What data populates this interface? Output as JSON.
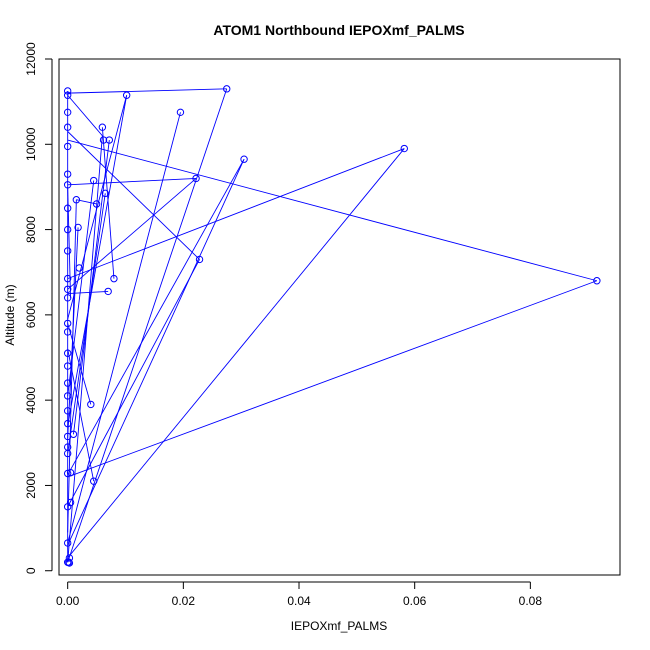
{
  "chart_data": {
    "type": "line",
    "title": "ATOM1 Northbound IEPOXmf_PALMS",
    "xlabel": "IEPOXmf_PALMS",
    "ylabel": "Altitude (m)",
    "xlim": [
      -0.0015,
      0.0955
    ],
    "ylim": [
      -100,
      12000
    ],
    "xticks": [
      0.0,
      0.02,
      0.04,
      0.06,
      0.08
    ],
    "xtick_labels": [
      "0.00",
      "0.02",
      "0.04",
      "0.06",
      "0.08"
    ],
    "yticks": [
      0,
      2000,
      4000,
      6000,
      8000,
      10000,
      12000
    ],
    "ytick_labels": [
      "0",
      "2000",
      "4000",
      "6000",
      "8000",
      "10000",
      "12000"
    ],
    "grid": false,
    "legend": "none",
    "series": [
      {
        "color": "#0000ff",
        "marker": "open-circle",
        "points": [
          [
            0.0,
            200
          ],
          [
            0.0,
            650
          ],
          [
            0.0003,
            180
          ],
          [
            0.0002,
            200
          ],
          [
            0.0,
            1500
          ],
          [
            0.0,
            2280
          ],
          [
            0.0005,
            2300
          ],
          [
            0.0,
            2750
          ],
          [
            0.0,
            2900
          ],
          [
            0.0,
            3150
          ],
          [
            0.0,
            3450
          ],
          [
            0.0,
            3750
          ],
          [
            0.0,
            4100
          ],
          [
            0.0,
            4400
          ],
          [
            0.0,
            4800
          ],
          [
            0.0,
            5100
          ],
          [
            0.0,
            5600
          ],
          [
            0.0,
            5800
          ],
          [
            0.0,
            6400
          ],
          [
            0.0,
            6600
          ],
          [
            0.0,
            6850
          ],
          [
            0.0,
            7500
          ],
          [
            0.0,
            8000
          ],
          [
            0.0,
            8500
          ],
          [
            0.0,
            9050
          ],
          [
            0.0,
            9300
          ],
          [
            0.0,
            9950
          ],
          [
            0.0,
            10400
          ],
          [
            0.0,
            10750
          ],
          [
            0.0,
            11150
          ],
          [
            0.0,
            11250
          ],
          [
            0.0003,
            300
          ],
          [
            0.0005,
            1600
          ],
          [
            0.001,
            3200
          ],
          [
            0.0015,
            8700
          ],
          [
            0.0018,
            8050
          ],
          [
            0.002,
            7100
          ],
          [
            0.004,
            3900
          ],
          [
            0.0045,
            2100
          ],
          [
            0.0045,
            9150
          ],
          [
            0.005,
            8600
          ],
          [
            0.006,
            10400
          ],
          [
            0.0062,
            10100
          ],
          [
            0.0065,
            8850
          ],
          [
            0.007,
            6550
          ],
          [
            0.0072,
            10100
          ],
          [
            0.008,
            6850
          ],
          [
            0.0102,
            11150
          ],
          [
            0.0195,
            10750
          ],
          [
            0.0222,
            9200
          ],
          [
            0.0228,
            7300
          ],
          [
            0.0275,
            11300
          ],
          [
            0.0305,
            9650
          ],
          [
            0.0582,
            9900
          ],
          [
            0.0915,
            6800
          ]
        ]
      }
    ],
    "segments": [
      [
        [
          0.0,
          11200
        ],
        [
          0.0275,
          11300
        ]
      ],
      [
        [
          0.0,
          11150
        ],
        [
          0.006,
          10200
        ]
      ],
      [
        [
          0.0,
          9050
        ],
        [
          0.0222,
          9200
        ]
      ],
      [
        [
          0.0,
          6850
        ],
        [
          0.0582,
          9900
        ]
      ],
      [
        [
          0.0,
          10100
        ],
        [
          0.0915,
          6800
        ]
      ],
      [
        [
          0.0915,
          6800
        ],
        [
          0.0,
          2200
        ]
      ],
      [
        [
          0.0582,
          9900
        ],
        [
          0.0,
          300
        ]
      ],
      [
        [
          0.0305,
          9650
        ],
        [
          0.0,
          600
        ]
      ],
      [
        [
          0.0305,
          9650
        ],
        [
          0.0,
          2250
        ]
      ],
      [
        [
          0.0195,
          10750
        ],
        [
          0.0,
          650
        ]
      ],
      [
        [
          0.0228,
          7300
        ],
        [
          0.0,
          10300
        ]
      ],
      [
        [
          0.0228,
          7300
        ],
        [
          0.0,
          1500
        ]
      ],
      [
        [
          0.0222,
          9200
        ],
        [
          0.0,
          6600
        ]
      ],
      [
        [
          0.0275,
          11300
        ],
        [
          0.0,
          200
        ]
      ],
      [
        [
          0.0102,
          11150
        ],
        [
          0.0,
          3400
        ]
      ],
      [
        [
          0.0102,
          11150
        ],
        [
          0.0,
          5900
        ]
      ],
      [
        [
          0.006,
          10200
        ],
        [
          0.0,
          200
        ]
      ],
      [
        [
          0.0072,
          10100
        ],
        [
          0.001,
          3200
        ]
      ],
      [
        [
          0.008,
          6850
        ],
        [
          0.006,
          10400
        ]
      ],
      [
        [
          0.007,
          6550
        ],
        [
          0.0,
          6500
        ]
      ],
      [
        [
          0.0065,
          8850
        ],
        [
          0.0,
          2750
        ]
      ],
      [
        [
          0.005,
          8600
        ],
        [
          0.0015,
          8700
        ]
      ],
      [
        [
          0.0045,
          9150
        ],
        [
          0.0,
          4100
        ]
      ],
      [
        [
          0.0045,
          2100
        ],
        [
          0.0,
          5200
        ]
      ],
      [
        [
          0.004,
          3900
        ],
        [
          0.0,
          5800
        ]
      ],
      [
        [
          0.0018,
          8050
        ],
        [
          0.0,
          3100
        ]
      ],
      [
        [
          0.0015,
          8700
        ],
        [
          0.0,
          900
        ]
      ],
      [
        [
          0.0005,
          6400
        ],
        [
          0.0,
          9000
        ]
      ],
      [
        [
          0.0,
          200
        ],
        [
          0.0,
          11250
        ]
      ]
    ]
  }
}
